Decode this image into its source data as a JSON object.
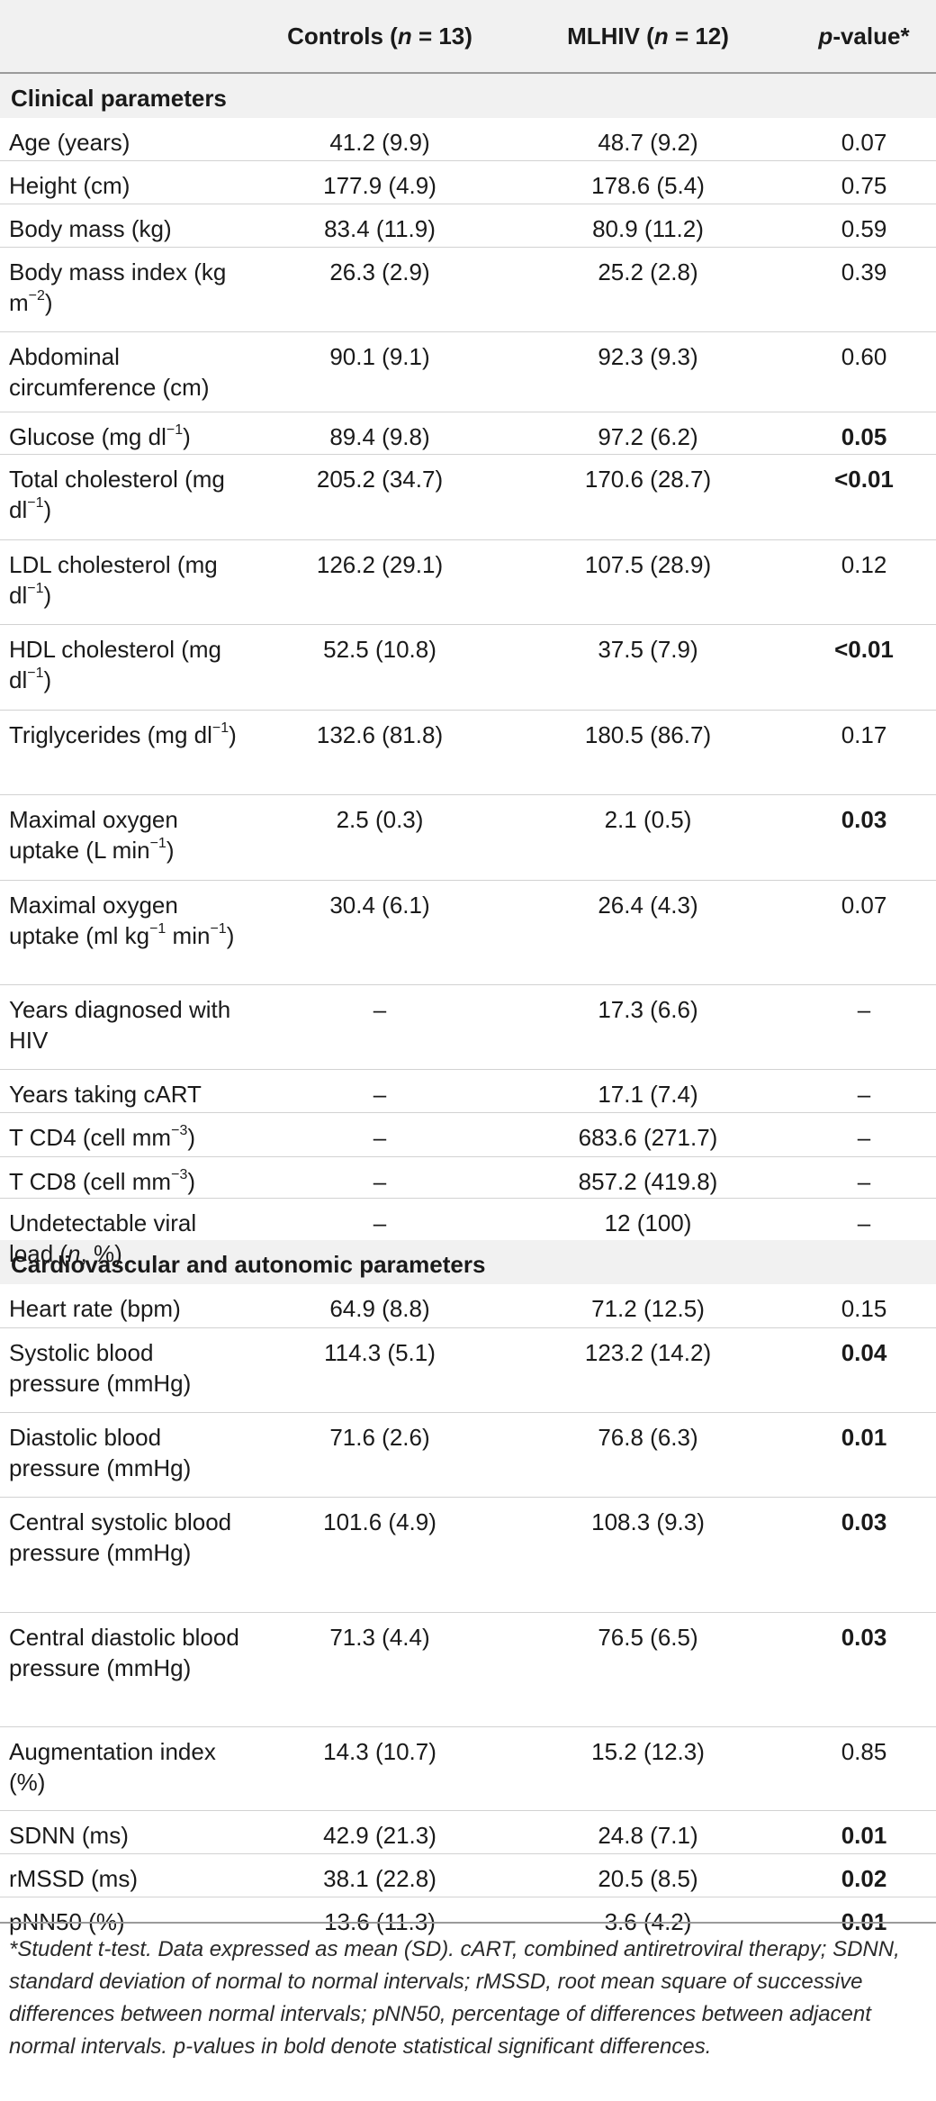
{
  "header": {
    "col1_label": "",
    "col2_prefix": "Controls (",
    "col2_n": "n",
    "col2_suffix": " = 13)",
    "col3_prefix": "MLHIV (",
    "col3_n": "n",
    "col3_suffix": " = 12)",
    "col4_p": "p",
    "col4_suffix": "-value*"
  },
  "sections": {
    "clinical": "Clinical parameters",
    "cardio": "Cardiovascular and autonomic parameters"
  },
  "rows": [
    {
      "label": "Age (years)",
      "controls": "41.2 (9.9)",
      "mlhiv": "48.7 (9.2)",
      "p": "0.07",
      "bold": false
    },
    {
      "label": "Height (cm)",
      "controls": "177.9 (4.9)",
      "mlhiv": "178.6 (5.4)",
      "p": "0.75",
      "bold": false
    },
    {
      "label": "Body mass (kg)",
      "controls": "83.4 (11.9)",
      "mlhiv": "80.9 (11.2)",
      "p": "0.59",
      "bold": false
    },
    {
      "label": "Body mass index (kg m",
      "label_sup": "−2",
      "label_end": ")",
      "controls": "26.3 (2.9)",
      "mlhiv": "25.2 (2.8)",
      "p": "0.39",
      "bold": false
    },
    {
      "label": "Abdominal circumference (cm)",
      "controls": "90.1 (9.1)",
      "mlhiv": "92.3 (9.3)",
      "p": "0.60",
      "bold": false
    },
    {
      "label": "Glucose (mg dl",
      "label_sup": "−1",
      "label_end": ")",
      "controls": "89.4 (9.8)",
      "mlhiv": "97.2 (6.2)",
      "p": "0.05",
      "bold": true
    },
    {
      "label": "Total cholesterol (mg dl",
      "label_sup": "−1",
      "label_end": ")",
      "controls": "205.2 (34.7)",
      "mlhiv": "170.6 (28.7)",
      "p": "<0.01",
      "bold": true
    },
    {
      "label": "LDL cholesterol (mg dl",
      "label_sup": "−1",
      "label_end": ")",
      "controls": "126.2 (29.1)",
      "mlhiv": "107.5 (28.9)",
      "p": "0.12",
      "bold": false
    },
    {
      "label": "HDL cholesterol (mg dl",
      "label_sup": "−1",
      "label_end": ")",
      "controls": "52.5 (10.8)",
      "mlhiv": "37.5 (7.9)",
      "p": "<0.01",
      "bold": true
    },
    {
      "label": "Triglycerides (mg dl",
      "label_sup": "−1",
      "label_end": ")",
      "controls": "132.6 (81.8)",
      "mlhiv": "180.5 (86.7)",
      "p": "0.17",
      "bold": false
    },
    {
      "label": "Maximal oxygen uptake (L min",
      "label_sup": "−1",
      "label_end": ")",
      "controls": "2.5 (0.3)",
      "mlhiv": "2.1 (0.5)",
      "p": "0.03",
      "bold": true
    },
    {
      "label": "Maximal oxygen uptake (ml kg",
      "label_sup": "−1",
      "label_mid": " min",
      "label_sup2": "−1",
      "label_end": ")",
      "controls": "30.4 (6.1)",
      "mlhiv": "26.4 (4.3)",
      "p": "0.07",
      "bold": false
    },
    {
      "label": "Years diagnosed with HIV",
      "controls": "–",
      "mlhiv": "17.3 (6.6)",
      "p": "–",
      "bold": false
    },
    {
      "label": "Years taking cART",
      "controls": "–",
      "mlhiv": "17.1 (7.4)",
      "p": "–",
      "bold": false
    },
    {
      "label": "T CD4 (cell mm",
      "label_sup": "−3",
      "label_end": ")",
      "controls": "–",
      "mlhiv": "683.6 (271.7)",
      "p": "–",
      "bold": false
    },
    {
      "label": "T CD8 (cell mm",
      "label_sup": "−3",
      "label_end": ")",
      "controls": "–",
      "mlhiv": "857.2 (419.8)",
      "p": "–",
      "bold": false
    },
    {
      "label": "Undetectable viral load (",
      "label_italic": "n",
      "label_end": ", %)",
      "controls": "–",
      "mlhiv": "12 (100)",
      "p": "–",
      "bold": false
    },
    {
      "label": "Heart rate (bpm)",
      "controls": "64.9 (8.8)",
      "mlhiv": "71.2 (12.5)",
      "p": "0.15",
      "bold": false
    },
    {
      "label": "Systolic blood pressure (mmHg)",
      "controls": "114.3 (5.1)",
      "mlhiv": "123.2 (14.2)",
      "p": "0.04",
      "bold": true
    },
    {
      "label": "Diastolic blood pressure (mmHg)",
      "controls": "71.6 (2.6)",
      "mlhiv": "76.8 (6.3)",
      "p": "0.01",
      "bold": true
    },
    {
      "label": "Central systolic blood pressure (mmHg)",
      "controls": "101.6 (4.9)",
      "mlhiv": "108.3 (9.3)",
      "p": "0.03",
      "bold": true
    },
    {
      "label": "Central diastolic blood pressure (mmHg)",
      "controls": "71.3 (4.4)",
      "mlhiv": "76.5 (6.5)",
      "p": "0.03",
      "bold": true
    },
    {
      "label": "Augmentation index (%)",
      "controls": "14.3 (10.7)",
      "mlhiv": "15.2 (12.3)",
      "p": "0.85",
      "bold": false
    },
    {
      "label": "SDNN (ms)",
      "controls": "42.9 (21.3)",
      "mlhiv": "24.8 (7.1)",
      "p": "0.01",
      "bold": true
    },
    {
      "label": "rMSSD (ms)",
      "controls": "38.1 (22.8)",
      "mlhiv": "20.5 (8.5)",
      "p": "0.02",
      "bold": true
    },
    {
      "label": "pNN50 (%)",
      "controls": "13.6 (11.3)",
      "mlhiv": "3.6 (4.2)",
      "p": "0.01",
      "bold": true
    }
  ],
  "footnote": "*Student t-test. Data expressed as mean (SD). cART, combined antiretroviral therapy; SDNN, standard deviation of normal to normal intervals; rMSSD, root mean square of successive differences between normal intervals; pNN50, percentage of differences between adjacent normal intervals. p-values in bold denote statistical significant differences."
}
